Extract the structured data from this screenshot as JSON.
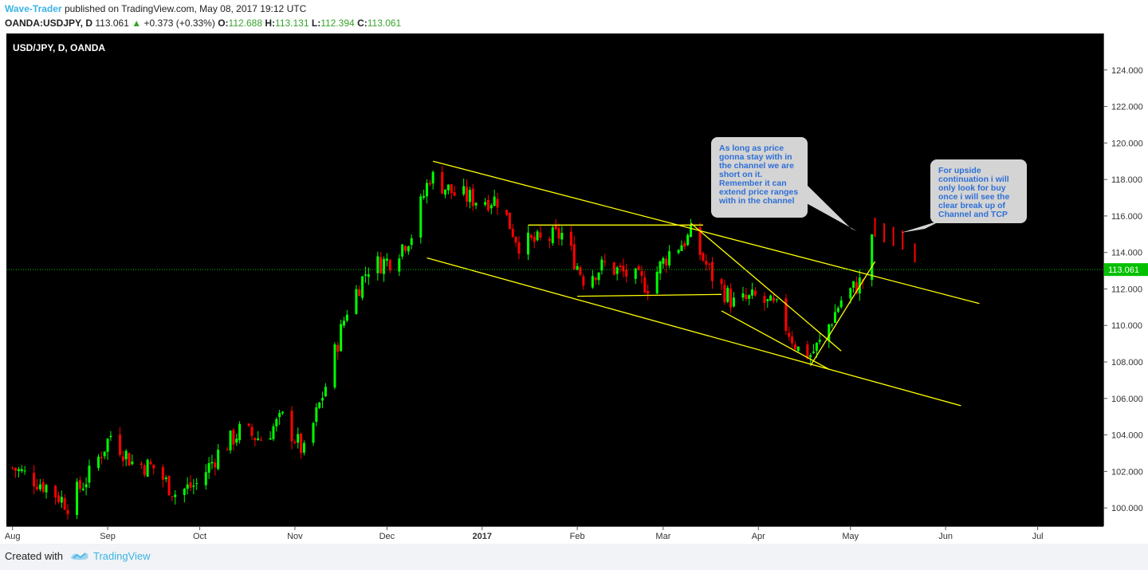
{
  "header": {
    "author": "Wave-Trader",
    "published": "published on TradingView.com, May 08, 2017 19:12 UTC",
    "symbol": "OANDA:USDJPY, D",
    "last": "113.061",
    "arrow": "▲",
    "change": "+0.373 (+0.33%)",
    "o_label": "O:",
    "o_value": "112.688",
    "h_label": "H:",
    "h_value": "113.131",
    "l_label": "L:",
    "l_value": "112.394",
    "c_label": "C:",
    "c_value": "113.061"
  },
  "chart_title": "USD/JPY, D, OANDA",
  "callouts": {
    "left": "As long as price gonna stay with in the channel we are short on it. Remember it can extend price ranges with in the channel",
    "right": "For upside continuation i will only look for buy once i will see the clear break up of Channel and TCP"
  },
  "footer": {
    "created": "Created with",
    "brand": "TradingView",
    "logo_icon": "tradingview-logo-icon"
  },
  "colors": {
    "up": "#00ff00",
    "down": "#ff0000",
    "background": "#000000",
    "trendline": "#ffff00",
    "last_price_line": "#00c000",
    "price_label_bg": "#00c000"
  },
  "chart_data": {
    "type": "candlestick",
    "symbol": "USD/JPY",
    "interval": "D",
    "ylim": [
      99.0,
      126.0
    ],
    "y_ticks": [
      "100.000",
      "102.000",
      "104.000",
      "106.000",
      "108.000",
      "110.000",
      "112.000",
      "114.000",
      "116.000",
      "118.000",
      "120.000",
      "122.000",
      "124.000"
    ],
    "x_ticks": [
      "Aug",
      "Sep",
      "Oct",
      "Nov",
      "Dec",
      "2017",
      "Feb",
      "Mar",
      "Apr",
      "May",
      "Jun",
      "Jul"
    ],
    "last_price": 113.061,
    "last_price_label": "113.061",
    "close_path": [
      {
        "date": "2016-08-01",
        "close": 102.2
      },
      {
        "date": "2016-08-12",
        "close": 101.2
      },
      {
        "date": "2016-08-19",
        "close": 100.2
      },
      {
        "date": "2016-08-26",
        "close": 101.8
      },
      {
        "date": "2016-09-02",
        "close": 104.0
      },
      {
        "date": "2016-09-09",
        "close": 102.5
      },
      {
        "date": "2016-09-16",
        "close": 102.2
      },
      {
        "date": "2016-09-23",
        "close": 100.8
      },
      {
        "date": "2016-09-30",
        "close": 101.3
      },
      {
        "date": "2016-10-07",
        "close": 103.0
      },
      {
        "date": "2016-10-14",
        "close": 104.2
      },
      {
        "date": "2016-10-21",
        "close": 103.8
      },
      {
        "date": "2016-10-28",
        "close": 104.9
      },
      {
        "date": "2016-11-04",
        "close": 103.0
      },
      {
        "date": "2016-11-11",
        "close": 106.7
      },
      {
        "date": "2016-11-18",
        "close": 110.9
      },
      {
        "date": "2016-11-25",
        "close": 113.2
      },
      {
        "date": "2016-12-02",
        "close": 113.6
      },
      {
        "date": "2016-12-09",
        "close": 115.0
      },
      {
        "date": "2016-12-15",
        "close": 118.2
      },
      {
        "date": "2016-12-23",
        "close": 117.2
      },
      {
        "date": "2016-12-30",
        "close": 116.9
      },
      {
        "date": "2017-01-06",
        "close": 116.9
      },
      {
        "date": "2017-01-13",
        "close": 114.5
      },
      {
        "date": "2017-01-20",
        "close": 114.6
      },
      {
        "date": "2017-01-27",
        "close": 115.0
      },
      {
        "date": "2017-02-03",
        "close": 112.6
      },
      {
        "date": "2017-02-10",
        "close": 113.3
      },
      {
        "date": "2017-02-17",
        "close": 112.8
      },
      {
        "date": "2017-02-24",
        "close": 112.2
      },
      {
        "date": "2017-03-03",
        "close": 114.0
      },
      {
        "date": "2017-03-10",
        "close": 114.9
      },
      {
        "date": "2017-03-17",
        "close": 112.7
      },
      {
        "date": "2017-03-24",
        "close": 111.2
      },
      {
        "date": "2017-03-31",
        "close": 111.5
      },
      {
        "date": "2017-04-07",
        "close": 110.9
      },
      {
        "date": "2017-04-14",
        "close": 108.7
      },
      {
        "date": "2017-04-18",
        "close": 108.4
      },
      {
        "date": "2017-04-21",
        "close": 109.0
      },
      {
        "date": "2017-04-28",
        "close": 111.4
      },
      {
        "date": "2017-05-05",
        "close": 112.5
      },
      {
        "date": "2017-05-08",
        "close": 113.06
      }
    ],
    "projection": [
      {
        "date": "2017-05-09",
        "close": 115.9
      },
      {
        "date": "2017-05-12",
        "close": 115.6
      },
      {
        "date": "2017-05-15",
        "close": 115.4
      },
      {
        "date": "2017-05-18",
        "close": 115.2
      },
      {
        "date": "2017-05-22",
        "close": 114.5
      }
    ],
    "trendlines": [
      {
        "name": "upper-channel",
        "from": {
          "date": "2016-12-16",
          "price": 119.0
        },
        "to": {
          "date": "2017-06-12",
          "price": 111.2
        }
      },
      {
        "name": "lower-channel",
        "from": {
          "date": "2016-12-14",
          "price": 113.7
        },
        "to": {
          "date": "2017-06-06",
          "price": 105.6
        }
      },
      {
        "name": "range-top",
        "from": {
          "date": "2017-01-16",
          "price": 115.5
        },
        "to": {
          "date": "2017-03-14",
          "price": 115.5
        }
      },
      {
        "name": "range-bottom",
        "from": {
          "date": "2017-02-01",
          "price": 111.6
        },
        "to": {
          "date": "2017-03-20",
          "price": 111.7
        }
      },
      {
        "name": "wedge-upper",
        "from": {
          "date": "2017-03-10",
          "price": 115.6
        },
        "to": {
          "date": "2017-04-28",
          "price": 108.6
        }
      },
      {
        "name": "wedge-lower",
        "from": {
          "date": "2017-03-20",
          "price": 110.8
        },
        "to": {
          "date": "2017-04-24",
          "price": 107.6
        }
      },
      {
        "name": "breakout-rising",
        "from": {
          "date": "2017-04-18",
          "price": 107.8
        },
        "to": {
          "date": "2017-05-09",
          "price": 113.5
        }
      }
    ]
  }
}
